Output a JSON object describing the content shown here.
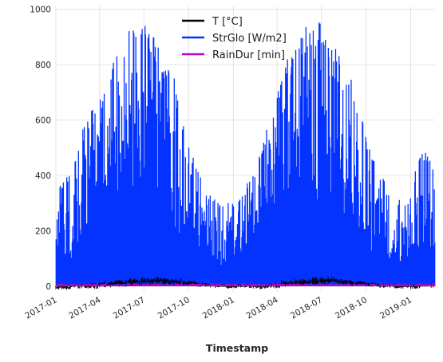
{
  "chart_data": {
    "type": "line",
    "title": "",
    "xlabel": "Timestamp",
    "ylabel": "",
    "x_ticks": [
      "2017-01",
      "2017-04",
      "2017-07",
      "2017-10",
      "2018-01",
      "2018-04",
      "2018-07",
      "2018-10",
      "2019-01"
    ],
    "x_range": [
      "2017-01-01",
      "2019-02-20"
    ],
    "ylim": [
      -20,
      1010
    ],
    "y_ticks": [
      0,
      200,
      400,
      600,
      800,
      1000
    ],
    "grid": true,
    "legend_position": "top-center",
    "series": [
      {
        "name": "T [°C]",
        "color": "#000000",
        "values_min": [
          -12,
          -8,
          -10,
          -5,
          -2,
          2,
          5,
          7,
          5,
          2,
          -3,
          -7,
          -8,
          -6,
          -10,
          -7,
          -2,
          1,
          4,
          6,
          5,
          2,
          -2,
          -5,
          -8,
          -9,
          -5
        ],
        "values_max": [
          6,
          10,
          14,
          20,
          24,
          28,
          33,
          34,
          28,
          22,
          14,
          9,
          6,
          8,
          8,
          14,
          22,
          28,
          33,
          35,
          27,
          20,
          14,
          9,
          7,
          8,
          12
        ]
      },
      {
        "name": "StrGlo [W/m2]",
        "color": "#0433ff",
        "envelope_x": [
          "2017-01-01",
          "2017-01-15",
          "2017-02-01",
          "2017-02-15",
          "2017-03-01",
          "2017-03-15",
          "2017-04-01",
          "2017-04-15",
          "2017-05-01",
          "2017-05-15",
          "2017-06-01",
          "2017-06-15",
          "2017-07-01",
          "2017-07-15",
          "2017-08-01",
          "2017-08-15",
          "2017-09-01",
          "2017-09-15",
          "2017-10-01",
          "2017-10-15",
          "2017-11-01",
          "2017-11-15",
          "2017-12-01",
          "2017-12-15",
          "2018-01-01",
          "2018-01-15",
          "2018-02-01",
          "2018-02-15",
          "2018-03-01",
          "2018-03-15",
          "2018-04-01",
          "2018-04-15",
          "2018-05-01",
          "2018-05-15",
          "2018-06-01",
          "2018-06-15",
          "2018-07-01",
          "2018-07-15",
          "2018-08-01",
          "2018-08-15",
          "2018-09-01",
          "2018-09-15",
          "2018-10-01",
          "2018-10-15",
          "2018-11-01",
          "2018-11-15",
          "2018-12-01",
          "2018-12-15",
          "2019-01-01",
          "2019-01-15",
          "2019-02-01",
          "2019-02-15"
        ],
        "values_max": [
          350,
          380,
          420,
          500,
          600,
          640,
          690,
          760,
          820,
          900,
          940,
          960,
          950,
          920,
          870,
          820,
          760,
          640,
          520,
          440,
          380,
          330,
          300,
          290,
          320,
          340,
          380,
          420,
          510,
          620,
          700,
          800,
          850,
          900,
          940,
          960,
          950,
          920,
          880,
          830,
          760,
          650,
          560,
          470,
          420,
          350,
          330,
          300,
          330,
          470,
          490,
          460
        ],
        "values_floor": [
          150,
          160,
          180,
          230,
          280,
          330,
          380,
          420,
          460,
          500,
          520,
          520,
          510,
          490,
          460,
          420,
          380,
          320,
          260,
          210,
          160,
          140,
          130,
          130,
          150,
          160,
          180,
          220,
          270,
          320,
          380,
          420,
          460,
          500,
          520,
          520,
          510,
          490,
          460,
          420,
          370,
          310,
          260,
          200,
          160,
          140,
          130,
          130,
          150,
          170,
          190,
          200
        ]
      },
      {
        "name": "RainDur [min]",
        "color": "#bf00bf",
        "min": 0,
        "max": 10
      }
    ]
  }
}
